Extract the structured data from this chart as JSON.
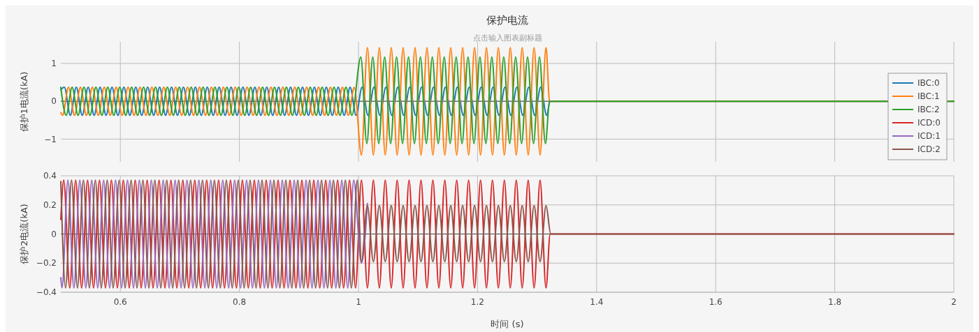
{
  "chart_data": [
    {
      "type": "line",
      "title": "保护电流",
      "subtitle": "点击输入图表副标题",
      "ylabel": "保护1电流(kA)",
      "xlim": [
        0.5,
        2
      ],
      "xticks": [
        0.6,
        0.8,
        1,
        1.2,
        1.4,
        1.6,
        1.8,
        2
      ],
      "ylim": [
        -1.6,
        1.57
      ],
      "yticks": [
        {
          "value": -1,
          "label": "−1"
        },
        0,
        1
      ],
      "tick_labels": "y",
      "grid": true,
      "legend": "right",
      "line_style": "solid",
      "marker": "none",
      "series": [
        {
          "name": "IBC:0",
          "color": "#1f77b4",
          "x": [
            0.5,
            0.506,
            0.516,
            0.526,
            0.536,
            0.546,
            0.556,
            0.566,
            0.576,
            0.586,
            0.596,
            0.606,
            0.616,
            0.626,
            0.636,
            0.646,
            0.656,
            0.666,
            0.676,
            0.686,
            0.696,
            0.706,
            0.716,
            0.726,
            0.736,
            0.746,
            0.756,
            0.766,
            0.776,
            0.786,
            0.796,
            0.806,
            0.816,
            0.826,
            0.836,
            0.846,
            0.856,
            0.866,
            0.876,
            0.886,
            0.896,
            0.906,
            0.916,
            0.926,
            0.936,
            0.946,
            0.956,
            0.966,
            0.976,
            0.986,
            0.996,
            1.006,
            1.016,
            1.026,
            1.036,
            1.046,
            1.056,
            1.066,
            1.076,
            1.086,
            1.096,
            1.106,
            1.116,
            1.126,
            1.136,
            1.146,
            1.156,
            1.166,
            1.176,
            1.186,
            1.196,
            1.206,
            1.216,
            1.226,
            1.236,
            1.246,
            1.256,
            1.266,
            1.276,
            1.286,
            1.296,
            1.306,
            1.316,
            1.322,
            2
          ],
          "values": [
            0.3,
            0.37,
            -0.37,
            0.37,
            -0.37,
            0.37,
            -0.37,
            0.37,
            -0.37,
            0.37,
            -0.37,
            0.37,
            -0.37,
            0.37,
            -0.37,
            0.37,
            -0.37,
            0.37,
            -0.37,
            0.37,
            -0.37,
            0.37,
            -0.37,
            0.37,
            -0.37,
            0.37,
            -0.37,
            0.37,
            -0.37,
            0.37,
            -0.37,
            0.37,
            -0.37,
            0.37,
            -0.37,
            0.37,
            -0.37,
            0.37,
            -0.37,
            0.37,
            -0.37,
            0.37,
            -0.37,
            0.37,
            -0.37,
            0.37,
            -0.37,
            0.37,
            -0.37,
            0.37,
            -0.37,
            0.37,
            -0.37,
            0.37,
            -0.37,
            0.37,
            -0.37,
            0.37,
            -0.37,
            0.37,
            -0.37,
            0.37,
            -0.37,
            0.37,
            -0.37,
            0.37,
            -0.37,
            0.37,
            -0.37,
            0.37,
            -0.37,
            0.37,
            -0.37,
            0.37,
            -0.37,
            0.37,
            -0.37,
            0.37,
            -0.37,
            0.37,
            -0.37,
            0.37,
            -0.37,
            0,
            0
          ]
        },
        {
          "name": "IBC:1",
          "color": "#ff7f0e",
          "x": [
            0.5,
            0.503,
            0.513,
            0.523,
            0.533,
            0.543,
            0.553,
            0.563,
            0.573,
            0.583,
            0.593,
            0.603,
            0.613,
            0.623,
            0.633,
            0.643,
            0.653,
            0.663,
            0.673,
            0.683,
            0.693,
            0.703,
            0.713,
            0.723,
            0.733,
            0.743,
            0.753,
            0.763,
            0.773,
            0.783,
            0.793,
            0.803,
            0.813,
            0.823,
            0.833,
            0.843,
            0.853,
            0.863,
            0.873,
            0.883,
            0.893,
            0.903,
            0.913,
            0.923,
            0.933,
            0.943,
            0.953,
            0.963,
            0.973,
            0.983,
            0.993,
            1.005,
            1.015,
            1.025,
            1.035,
            1.045,
            1.055,
            1.065,
            1.075,
            1.085,
            1.095,
            1.105,
            1.115,
            1.125,
            1.135,
            1.145,
            1.155,
            1.165,
            1.175,
            1.185,
            1.195,
            1.205,
            1.215,
            1.225,
            1.235,
            1.245,
            1.255,
            1.265,
            1.275,
            1.285,
            1.295,
            1.305,
            1.315,
            1.321,
            2
          ],
          "values": [
            -0.3,
            -0.37,
            0.37,
            -0.37,
            0.37,
            -0.37,
            0.37,
            -0.37,
            0.37,
            -0.37,
            0.37,
            -0.37,
            0.37,
            -0.37,
            0.37,
            -0.37,
            0.37,
            -0.37,
            0.37,
            -0.37,
            0.37,
            -0.37,
            0.37,
            -0.37,
            0.37,
            -0.37,
            0.37,
            -0.37,
            0.37,
            -0.37,
            0.37,
            -0.37,
            0.37,
            -0.37,
            0.37,
            -0.37,
            0.37,
            -0.37,
            0.37,
            -0.37,
            0.37,
            -0.37,
            0.37,
            -0.37,
            0.37,
            -0.37,
            0.37,
            -0.37,
            0.37,
            -0.37,
            0.37,
            -1.42,
            1.42,
            -1.42,
            1.42,
            -1.42,
            1.42,
            -1.42,
            1.42,
            -1.42,
            1.42,
            -1.42,
            1.42,
            -1.42,
            1.42,
            -1.42,
            1.42,
            -1.42,
            1.42,
            -1.42,
            1.42,
            -1.42,
            1.42,
            -1.42,
            1.42,
            -1.42,
            1.42,
            -1.42,
            1.42,
            -1.42,
            1.42,
            -1.42,
            1.42,
            0,
            0
          ]
        },
        {
          "name": "IBC:2",
          "color": "#2ca02c",
          "x": [
            0.5,
            0.509,
            0.519,
            0.529,
            0.539,
            0.549,
            0.559,
            0.569,
            0.579,
            0.589,
            0.599,
            0.609,
            0.619,
            0.629,
            0.639,
            0.649,
            0.659,
            0.669,
            0.679,
            0.689,
            0.699,
            0.709,
            0.719,
            0.729,
            0.739,
            0.749,
            0.759,
            0.769,
            0.779,
            0.789,
            0.799,
            0.809,
            0.819,
            0.829,
            0.839,
            0.849,
            0.859,
            0.869,
            0.879,
            0.889,
            0.899,
            0.909,
            0.919,
            0.929,
            0.939,
            0.949,
            0.959,
            0.969,
            0.979,
            0.989,
            1.004,
            1.014,
            1.024,
            1.034,
            1.044,
            1.054,
            1.064,
            1.074,
            1.084,
            1.094,
            1.104,
            1.114,
            1.124,
            1.134,
            1.144,
            1.154,
            1.164,
            1.174,
            1.184,
            1.194,
            1.204,
            1.214,
            1.224,
            1.234,
            1.244,
            1.254,
            1.264,
            1.274,
            1.284,
            1.294,
            1.304,
            1.314,
            1.321,
            2
          ],
          "values": [
            0.37,
            -0.37,
            0.37,
            -0.37,
            0.37,
            -0.37,
            0.37,
            -0.37,
            0.37,
            -0.37,
            0.37,
            -0.37,
            0.37,
            -0.37,
            0.37,
            -0.37,
            0.37,
            -0.37,
            0.37,
            -0.37,
            0.37,
            -0.37,
            0.37,
            -0.37,
            0.37,
            -0.37,
            0.37,
            -0.37,
            0.37,
            -0.37,
            0.37,
            -0.37,
            0.37,
            -0.37,
            0.37,
            -0.37,
            0.37,
            -0.37,
            0.37,
            -0.37,
            0.37,
            -0.37,
            0.37,
            -0.37,
            0.37,
            -0.37,
            0.37,
            -0.37,
            0.37,
            -0.37,
            1.17,
            -1.12,
            1.17,
            -1.12,
            1.17,
            -1.12,
            1.17,
            -1.12,
            1.17,
            -1.12,
            1.17,
            -1.12,
            1.17,
            -1.12,
            1.17,
            -1.12,
            1.17,
            -1.12,
            1.17,
            -1.12,
            1.17,
            -1.12,
            1.17,
            -1.12,
            1.17,
            -1.12,
            1.17,
            -1.12,
            1.17,
            -1.12,
            1.17,
            -1.12,
            0,
            0
          ]
        }
      ]
    },
    {
      "type": "line",
      "xlabel": "时间 (s)",
      "ylabel": "保护2电流(kA)",
      "xlim": [
        0.5,
        2
      ],
      "xticks": [
        0.6,
        0.8,
        1,
        1.2,
        1.4,
        1.6,
        1.8,
        2
      ],
      "ylim": [
        -0.4,
        0.4
      ],
      "yticks": [
        {
          "value": -0.4,
          "label": "−0.4"
        },
        {
          "value": -0.2,
          "label": "−0.2"
        },
        0,
        0.2,
        0.4
      ],
      "grid": true,
      "legend": "right",
      "line_style": "solid",
      "marker": "none",
      "series": [
        {
          "name": "ICD:0",
          "color": "#d62728",
          "x": [
            0.5,
            0.505,
            0.515,
            0.525,
            0.535,
            0.545,
            0.555,
            0.565,
            0.575,
            0.585,
            0.595,
            0.605,
            0.615,
            0.625,
            0.635,
            0.645,
            0.655,
            0.665,
            0.675,
            0.685,
            0.695,
            0.705,
            0.715,
            0.725,
            0.735,
            0.745,
            0.755,
            0.765,
            0.775,
            0.785,
            0.795,
            0.805,
            0.815,
            0.825,
            0.835,
            0.845,
            0.855,
            0.865,
            0.875,
            0.885,
            0.895,
            0.905,
            0.915,
            0.925,
            0.935,
            0.945,
            0.955,
            0.965,
            0.975,
            0.985,
            0.995,
            1.005,
            1.015,
            1.025,
            1.035,
            1.045,
            1.055,
            1.065,
            1.075,
            1.085,
            1.095,
            1.105,
            1.115,
            1.125,
            1.135,
            1.145,
            1.155,
            1.165,
            1.175,
            1.185,
            1.195,
            1.205,
            1.215,
            1.225,
            1.235,
            1.245,
            1.255,
            1.265,
            1.275,
            1.285,
            1.295,
            1.305,
            1.315,
            1.322,
            2
          ],
          "values": [
            0.1,
            0.37,
            -0.37,
            0.37,
            -0.37,
            0.37,
            -0.37,
            0.37,
            -0.37,
            0.37,
            -0.37,
            0.37,
            -0.37,
            0.37,
            -0.37,
            0.37,
            -0.37,
            0.37,
            -0.37,
            0.37,
            -0.37,
            0.37,
            -0.37,
            0.37,
            -0.37,
            0.37,
            -0.37,
            0.37,
            -0.37,
            0.37,
            -0.37,
            0.37,
            -0.37,
            0.37,
            -0.37,
            0.37,
            -0.37,
            0.37,
            -0.37,
            0.37,
            -0.37,
            0.37,
            -0.37,
            0.37,
            -0.37,
            0.37,
            -0.37,
            0.37,
            -0.37,
            0.37,
            -0.37,
            0.37,
            -0.37,
            0.37,
            -0.37,
            0.37,
            -0.37,
            0.37,
            -0.37,
            0.37,
            -0.37,
            0.37,
            -0.37,
            0.37,
            -0.37,
            0.37,
            -0.37,
            0.37,
            -0.37,
            0.37,
            -0.37,
            0.37,
            -0.37,
            0.37,
            -0.37,
            0.37,
            -0.37,
            0.37,
            -0.37,
            0.37,
            -0.37,
            0.37,
            -0.37,
            0,
            0
          ]
        },
        {
          "name": "ICD:1",
          "color": "#9467bd",
          "x": [
            0.5,
            0.502,
            0.512,
            0.522,
            0.532,
            0.542,
            0.552,
            0.562,
            0.572,
            0.582,
            0.592,
            0.602,
            0.612,
            0.622,
            0.632,
            0.642,
            0.652,
            0.662,
            0.672,
            0.682,
            0.692,
            0.702,
            0.712,
            0.722,
            0.732,
            0.742,
            0.752,
            0.762,
            0.772,
            0.782,
            0.792,
            0.802,
            0.812,
            0.822,
            0.832,
            0.842,
            0.852,
            0.862,
            0.872,
            0.882,
            0.892,
            0.902,
            0.912,
            0.922,
            0.932,
            0.942,
            0.952,
            0.962,
            0.972,
            0.982,
            0.992,
            1.005,
            1.015
          ],
          "values": [
            -0.3,
            -0.37,
            0.37,
            -0.37,
            0.37,
            -0.37,
            0.37,
            -0.37,
            0.37,
            -0.37,
            0.37,
            -0.37,
            0.37,
            -0.37,
            0.37,
            -0.37,
            0.37,
            -0.37,
            0.37,
            -0.37,
            0.37,
            -0.37,
            0.37,
            -0.37,
            0.37,
            -0.37,
            0.37,
            -0.37,
            0.37,
            -0.37,
            0.37,
            -0.37,
            0.37,
            -0.37,
            0.37,
            -0.37,
            0.37,
            -0.37,
            0.37,
            -0.37,
            0.37,
            -0.37,
            0.37,
            -0.37,
            0.37,
            -0.37,
            0.37,
            -0.37,
            0.37,
            -0.37,
            0.37,
            -0.2,
            0.21
          ]
        },
        {
          "name": "ICD:2",
          "color": "#8c564b",
          "x": [
            0.5,
            0.508,
            0.518,
            0.528,
            0.538,
            0.548,
            0.558,
            0.568,
            0.578,
            0.588,
            0.598,
            0.608,
            0.618,
            0.628,
            0.638,
            0.648,
            0.658,
            0.668,
            0.678,
            0.688,
            0.698,
            0.708,
            0.718,
            0.728,
            0.738,
            0.748,
            0.758,
            0.768,
            0.778,
            0.788,
            0.798,
            0.808,
            0.818,
            0.828,
            0.838,
            0.848,
            0.858,
            0.868,
            0.878,
            0.888,
            0.898,
            0.908,
            0.918,
            0.928,
            0.938,
            0.948,
            0.958,
            0.968,
            0.978,
            0.988,
            0.998,
            1.005,
            1.015,
            1.025,
            1.035,
            1.045,
            1.055,
            1.065,
            1.075,
            1.085,
            1.095,
            1.105,
            1.115,
            1.125,
            1.135,
            1.145,
            1.155,
            1.165,
            1.175,
            1.185,
            1.195,
            1.205,
            1.215,
            1.225,
            1.235,
            1.245,
            1.255,
            1.265,
            1.275,
            1.285,
            1.295,
            1.305,
            1.315,
            1.323,
            2
          ],
          "values": [
            0.36,
            -0.37,
            0.37,
            -0.37,
            0.37,
            -0.37,
            0.37,
            -0.37,
            0.37,
            -0.37,
            0.37,
            -0.37,
            0.37,
            -0.37,
            0.37,
            -0.37,
            0.37,
            -0.37,
            0.37,
            -0.37,
            0.37,
            -0.37,
            0.37,
            -0.37,
            0.37,
            -0.37,
            0.37,
            -0.37,
            0.37,
            -0.37,
            0.37,
            -0.37,
            0.37,
            -0.37,
            0.37,
            -0.37,
            0.37,
            -0.37,
            0.37,
            -0.37,
            0.37,
            -0.37,
            0.37,
            -0.37,
            0.37,
            -0.37,
            0.37,
            -0.37,
            0.37,
            -0.37,
            0.37,
            -0.19,
            0.195,
            -0.19,
            0.195,
            -0.19,
            0.195,
            -0.19,
            0.195,
            -0.19,
            0.195,
            -0.19,
            0.195,
            -0.19,
            0.195,
            -0.19,
            0.195,
            -0.19,
            0.195,
            -0.19,
            0.195,
            -0.19,
            0.195,
            -0.19,
            0.195,
            -0.19,
            0.195,
            -0.19,
            0.195,
            -0.19,
            0.195,
            -0.19,
            0.195,
            0,
            0
          ]
        }
      ]
    }
  ]
}
